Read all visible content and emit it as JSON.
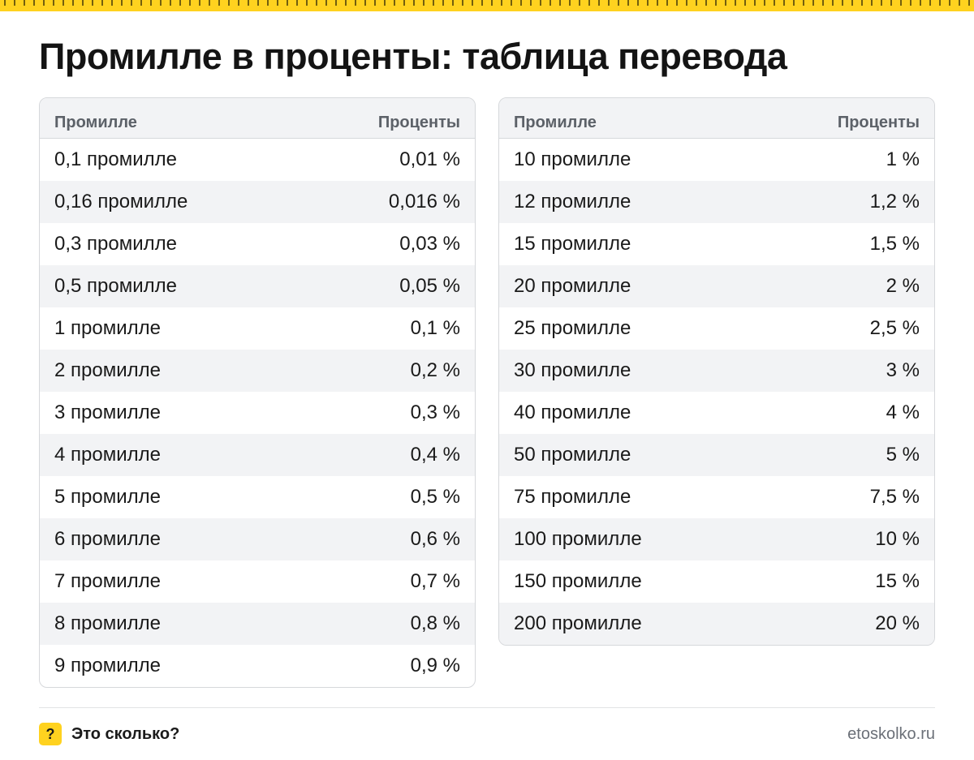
{
  "title": "Промилле в проценты: таблица перевода",
  "columns": {
    "left": "Промилле",
    "right": "Проценты"
  },
  "table_left": [
    [
      "0,1 промилле",
      "0,01 %"
    ],
    [
      "0,16 промилле",
      "0,016 %"
    ],
    [
      "0,3 промилле",
      "0,03 %"
    ],
    [
      "0,5 промилле",
      "0,05 %"
    ],
    [
      "1 промилле",
      "0,1 %"
    ],
    [
      "2 промилле",
      "0,2 %"
    ],
    [
      "3 промилле",
      "0,3 %"
    ],
    [
      "4 промилле",
      "0,4 %"
    ],
    [
      "5 промилле",
      "0,5 %"
    ],
    [
      "6 промилле",
      "0,6 %"
    ],
    [
      "7 промилле",
      "0,7 %"
    ],
    [
      "8 промилле",
      "0,8 %"
    ],
    [
      "9 промилле",
      "0,9 %"
    ]
  ],
  "table_right": [
    [
      "10 промилле",
      "1 %"
    ],
    [
      "12 промилле",
      "1,2 %"
    ],
    [
      "15 промилле",
      "1,5 %"
    ],
    [
      "20 промилле",
      "2 %"
    ],
    [
      "25 промилле",
      "2,5 %"
    ],
    [
      "30 промилле",
      "3 %"
    ],
    [
      "40 промилле",
      "4 %"
    ],
    [
      "50 промилле",
      "5 %"
    ],
    [
      "75 промилле",
      "7,5 %"
    ],
    [
      "100 промилле",
      "10 %"
    ],
    [
      "150 промилле",
      "15 %"
    ],
    [
      "200 промилле",
      "20 %"
    ]
  ],
  "footer": {
    "badge": "?",
    "brand": "Это сколько?",
    "site": "etoskolko.ru"
  },
  "colors": {
    "accent": "#ffd21f",
    "header_bg": "#f2f3f5",
    "border": "#d6d8db"
  }
}
